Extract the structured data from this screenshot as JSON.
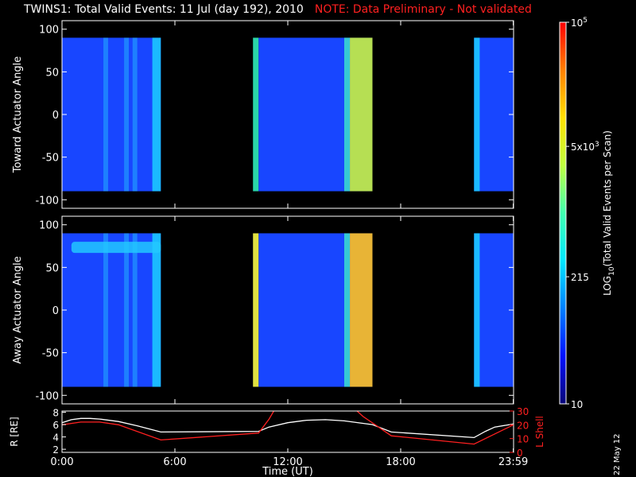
{
  "header": {
    "title": "TWINS1: Total Valid Events: 11 Jul (day 192), 2010",
    "note": "NOTE: Data Preliminary - Not validated"
  },
  "stamp": "22 May 12",
  "colors": {
    "background": "#000000",
    "axes": "#ffffff",
    "note": "#ff2020",
    "r_line": "#ffffff",
    "lshell_line": "#ff2020"
  },
  "chart_data": [
    {
      "type": "heatmap",
      "name": "top-panel",
      "ylabel": "Toward Actuator Angle",
      "ylim": [
        -110,
        110
      ],
      "yticks": [
        100,
        50,
        0,
        -50,
        -100
      ],
      "ytick_labels": [
        "100",
        "50",
        "0",
        "-50",
        "-100"
      ],
      "xlim": [
        0,
        24
      ],
      "data_angle_range": [
        -90,
        90
      ],
      "segments": [
        {
          "start": 0.0,
          "end": 5.25,
          "background": "#1846ff",
          "stripes": [
            {
              "from": 2.2,
              "to": 2.45,
              "color": "#1f86ff"
            },
            {
              "from": 3.3,
              "to": 3.55,
              "color": "#1f86ff"
            },
            {
              "from": 3.75,
              "to": 4.0,
              "color": "#1f86ff"
            },
            {
              "from": 4.8,
              "to": 5.25,
              "color": "#1cc6ff"
            }
          ]
        },
        {
          "start": 10.15,
          "end": 10.45,
          "background": "#2ad6a8",
          "stripes": []
        },
        {
          "start": 10.45,
          "end": 16.5,
          "background": "#1846ff",
          "stripes": [
            {
              "from": 15.0,
              "to": 15.3,
              "color": "#3ad6d0"
            },
            {
              "from": 15.3,
              "to": 16.5,
              "color": "#c8f040"
            }
          ]
        },
        {
          "start": 21.9,
          "end": 24.0,
          "background": "#1846ff",
          "stripes": [
            {
              "from": 21.9,
              "to": 22.2,
              "color": "#1cc6ff"
            }
          ]
        }
      ]
    },
    {
      "type": "heatmap",
      "name": "bottom-panel",
      "ylabel": "Away Actuator Angle",
      "ylim": [
        -110,
        110
      ],
      "yticks": [
        100,
        50,
        0,
        -50,
        -100
      ],
      "ytick_labels": [
        "100",
        "50",
        "0",
        "-50",
        "-100"
      ],
      "xlim": [
        0,
        24
      ],
      "data_angle_range": [
        -90,
        90
      ],
      "segments": [
        {
          "start": 0.0,
          "end": 5.25,
          "background": "#1846ff",
          "stripes": [
            {
              "from": 2.2,
              "to": 2.45,
              "color": "#1f86ff"
            },
            {
              "from": 3.3,
              "to": 3.55,
              "color": "#1f86ff"
            },
            {
              "from": 3.75,
              "to": 4.0,
              "color": "#1f86ff"
            },
            {
              "from": 4.8,
              "to": 5.25,
              "color": "#1cc6ff"
            }
          ],
          "band": {
            "from": 0.5,
            "to": 5.25,
            "angle_low": 67,
            "angle_high": 80,
            "color": "#22c8ff"
          }
        },
        {
          "start": 10.15,
          "end": 10.45,
          "background": "#e0e040",
          "stripes": []
        },
        {
          "start": 10.45,
          "end": 16.5,
          "background": "#1846ff",
          "stripes": [
            {
              "from": 15.0,
              "to": 15.3,
              "color": "#3ad6d0"
            },
            {
              "from": 15.3,
              "to": 16.5,
              "color": "#ffc020"
            }
          ]
        },
        {
          "start": 21.9,
          "end": 24.0,
          "background": "#1846ff",
          "stripes": [
            {
              "from": 21.9,
              "to": 22.2,
              "color": "#1cc6ff"
            }
          ]
        }
      ]
    },
    {
      "type": "line",
      "name": "orbit-panel",
      "xlabel": "Time (UT)",
      "xlim": [
        0,
        24
      ],
      "xticks": [
        0,
        6,
        12,
        18,
        23.983
      ],
      "xtick_labels": [
        "0:00",
        "6:00",
        "12:00",
        "18:00",
        "23:59"
      ],
      "ylabel_left": "R [RE]",
      "ylim_left": [
        1.5,
        8.2
      ],
      "yticks_left": [
        2,
        4,
        6,
        8
      ],
      "ytick_labels_left": [
        "2",
        "4",
        "6",
        "8"
      ],
      "ylabel_right": "L Shell",
      "ylim_right": [
        0,
        30
      ],
      "yticks_right": [
        0,
        10,
        20,
        30
      ],
      "ytick_labels_right": [
        "0",
        "10",
        "20",
        "30"
      ],
      "series": [
        {
          "axis": "left",
          "color": "#ffffff",
          "x": [
            0,
            0.5,
            1,
            1.5,
            2,
            3,
            4,
            5.25,
            10.45,
            11,
            12,
            13,
            14,
            15,
            16.5,
            17.5,
            21.9,
            22.5,
            23,
            24
          ],
          "y": [
            6.3,
            6.8,
            7.0,
            7.0,
            6.9,
            6.5,
            5.8,
            4.8,
            4.9,
            5.6,
            6.3,
            6.7,
            6.8,
            6.6,
            6.0,
            4.8,
            3.9,
            4.9,
            5.6,
            6.1
          ]
        },
        {
          "axis": "right",
          "color": "#ff2020",
          "x": [
            0,
            1,
            2,
            3,
            5.25,
            10.45,
            11.0,
            11.3,
            15.6,
            16.0,
            17.5,
            21.9,
            24
          ],
          "y": [
            20,
            22,
            22,
            20,
            9,
            14,
            24,
            31,
            31,
            26,
            12,
            6,
            20
          ]
        }
      ]
    },
    {
      "type": "heatmap",
      "name": "colorbar",
      "label": "LOG10(Total Valid Events per Scan)",
      "scale": "log",
      "range": [
        10,
        100000
      ],
      "ticks": [
        10,
        215,
        5000,
        100000
      ],
      "tick_labels": [
        "10",
        "215",
        "5x10^3",
        "10^5"
      ],
      "colors": [
        "#080478",
        "#0010ff",
        "#0080ff",
        "#00e8ff",
        "#40ffb0",
        "#c0ff40",
        "#ffe000",
        "#ff8000",
        "#ff0000"
      ]
    }
  ]
}
